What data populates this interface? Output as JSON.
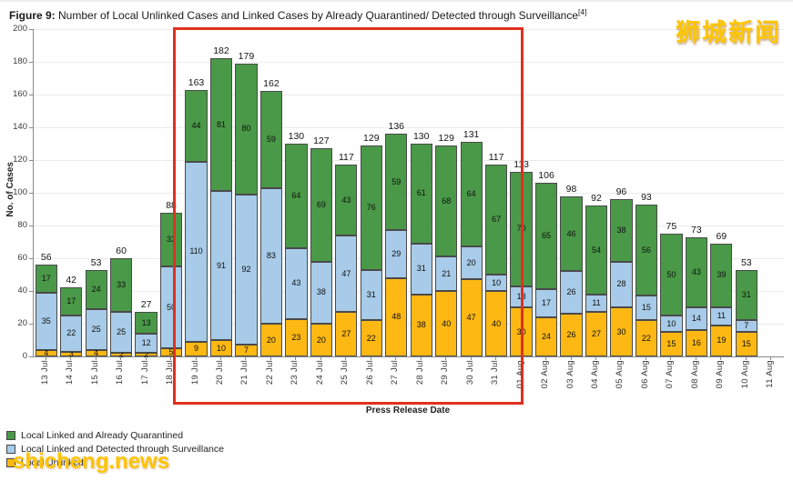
{
  "title": {
    "prefix": "Figure 9:",
    "text": " Number of Local Unlinked Cases and Linked Cases by Already Quarantined/ Detected through Surveillance",
    "superscript": "[4]"
  },
  "watermarks": {
    "top_right": "狮城新闻",
    "bottom_left": "shicheng.news"
  },
  "legend": {
    "items": [
      {
        "key": "quarantined",
        "label": "Local Linked and Already Quarantined",
        "color": "#4A9948"
      },
      {
        "key": "surveillance",
        "label": "Local Linked and Detected through Surveillance",
        "color": "#A7CBE8"
      },
      {
        "key": "unlinked",
        "label": "Local Unlinked",
        "color": "#FDB813"
      }
    ]
  },
  "chart_data": {
    "type": "bar",
    "stacked": true,
    "title": "Number of Local Unlinked Cases and Linked Cases by Already Quarantined/ Detected through Surveillance",
    "xlabel": "Press Release Date",
    "ylabel": "No. of Cases",
    "ylim": [
      0,
      200
    ],
    "ytick_step": 20,
    "grid": true,
    "legend_position": "bottom-left",
    "categories": [
      "13 Jul",
      "14 Jul",
      "15 Jul",
      "16 Jul",
      "17 Jul",
      "18 Jul",
      "19 Jul",
      "20 Jul",
      "21 Jul",
      "22 Jul",
      "23 Jul",
      "24 Jul",
      "25 Jul",
      "26 Jul",
      "27 Jul",
      "28 Jul",
      "29 Jul",
      "30 Jul",
      "31 Jul",
      "01 Aug",
      "02 Aug",
      "03 Aug",
      "04 Aug",
      "05 Aug",
      "06 Aug",
      "07 Aug",
      "08 Aug",
      "09 Aug",
      "10 Aug",
      "11 Aug"
    ],
    "series": [
      {
        "key": "unlinked",
        "name": "Local Unlinked",
        "color": "#FDB813",
        "values": [
          4,
          3,
          4,
          2,
          2,
          5,
          9,
          10,
          7,
          20,
          23,
          20,
          27,
          22,
          48,
          38,
          40,
          47,
          40,
          30,
          24,
          26,
          27,
          30,
          22,
          15,
          16,
          19,
          15,
          null
        ]
      },
      {
        "key": "surveillance",
        "name": "Local Linked and Detected through Surveillance",
        "color": "#A7CBE8",
        "values": [
          35,
          22,
          25,
          25,
          12,
          50,
          110,
          91,
          92,
          83,
          43,
          38,
          47,
          31,
          29,
          31,
          21,
          20,
          10,
          13,
          17,
          26,
          11,
          28,
          15,
          10,
          14,
          11,
          7,
          null
        ]
      },
      {
        "key": "quarantined",
        "name": "Local Linked and Already Quarantined",
        "color": "#4A9948",
        "values": [
          17,
          17,
          24,
          33,
          13,
          33,
          44,
          81,
          80,
          59,
          64,
          69,
          43,
          76,
          59,
          61,
          68,
          64,
          67,
          70,
          65,
          46,
          54,
          38,
          56,
          50,
          43,
          39,
          31,
          null
        ]
      }
    ],
    "totals": [
      56,
      42,
      53,
      60,
      27,
      88,
      163,
      182,
      179,
      162,
      130,
      127,
      117,
      129,
      136,
      130,
      129,
      131,
      117,
      113,
      106,
      98,
      92,
      96,
      93,
      75,
      73,
      69,
      53,
      null
    ],
    "highlight": {
      "from": "18 Jul",
      "to": "01 Aug",
      "color": "#E0301E"
    }
  }
}
